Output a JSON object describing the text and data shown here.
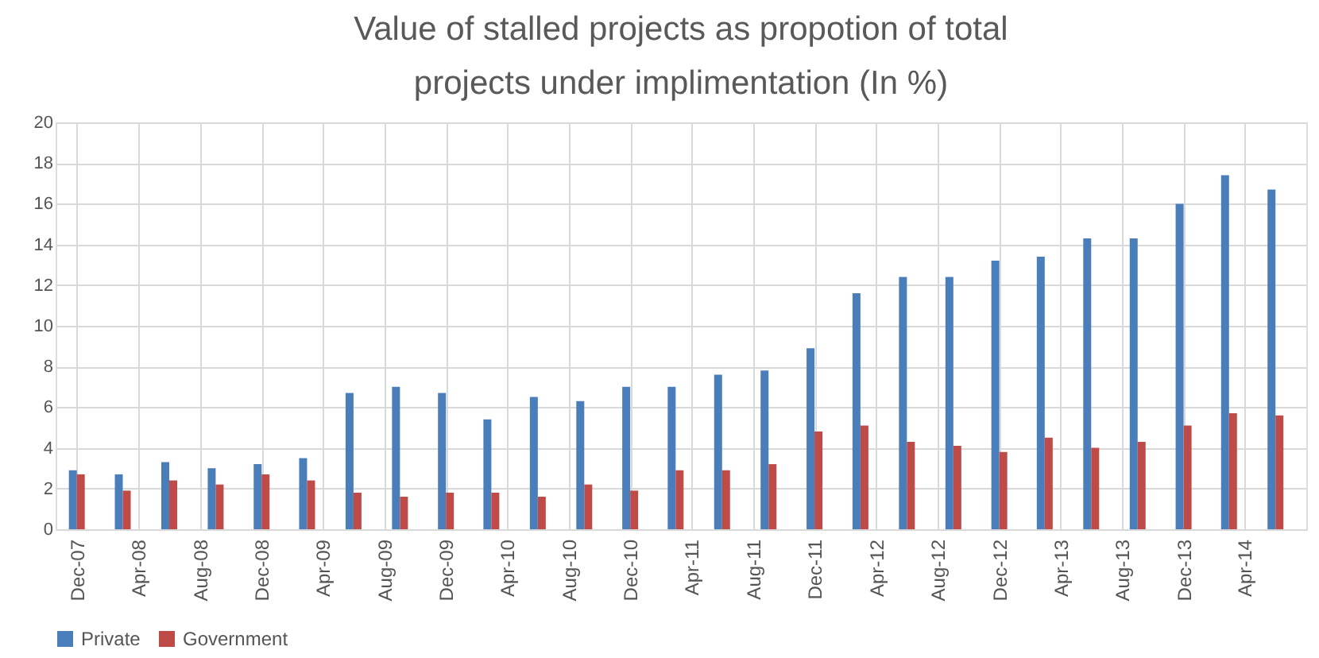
{
  "chart_data": {
    "type": "bar",
    "title": [
      "Value of stalled projects as propotion of total",
      "projects under implimentation (In %)"
    ],
    "x": [
      "2007-12",
      "2008-03",
      "2008-06",
      "2008-09",
      "2008-12",
      "2009-03",
      "2009-06",
      "2009-09",
      "2009-12",
      "2010-03",
      "2010-06",
      "2010-09",
      "2010-12",
      "2011-03",
      "2011-06",
      "2011-09",
      "2011-12",
      "2012-03",
      "2012-06",
      "2012-09",
      "2012-12",
      "2013-03",
      "2013-06",
      "2013-09",
      "2013-12",
      "2014-03",
      "2014-06"
    ],
    "series": [
      {
        "name": "Private",
        "color": "#4a7ebb",
        "values": [
          2.9,
          2.7,
          3.3,
          3.0,
          3.2,
          3.5,
          6.7,
          7.0,
          6.7,
          5.4,
          6.5,
          6.3,
          7.0,
          7.0,
          7.6,
          7.8,
          8.9,
          11.6,
          12.4,
          12.4,
          13.2,
          13.4,
          14.3,
          14.3,
          16.0,
          17.4,
          16.7
        ]
      },
      {
        "name": "Government",
        "color": "#be4b48",
        "values": [
          2.7,
          1.9,
          2.4,
          2.2,
          2.7,
          2.4,
          1.8,
          1.6,
          1.8,
          1.8,
          1.6,
          2.2,
          1.9,
          2.9,
          2.9,
          3.2,
          4.8,
          5.1,
          4.3,
          4.1,
          3.8,
          4.5,
          4.0,
          4.3,
          5.1,
          5.7,
          5.6
        ]
      }
    ],
    "xlim": [
      "2007-10-20",
      "2014-08-01"
    ],
    "xticks": [
      {
        "value": "2007-12",
        "label": "Dec-07"
      },
      {
        "value": "2008-04",
        "label": "Apr-08"
      },
      {
        "value": "2008-08",
        "label": "Aug-08"
      },
      {
        "value": "2008-12",
        "label": "Dec-08"
      },
      {
        "value": "2009-04",
        "label": "Apr-09"
      },
      {
        "value": "2009-08",
        "label": "Aug-09"
      },
      {
        "value": "2009-12",
        "label": "Dec-09"
      },
      {
        "value": "2010-04",
        "label": "Apr-10"
      },
      {
        "value": "2010-08",
        "label": "Aug-10"
      },
      {
        "value": "2010-12",
        "label": "Dec-10"
      },
      {
        "value": "2011-04",
        "label": "Apr-11"
      },
      {
        "value": "2011-08",
        "label": "Aug-11"
      },
      {
        "value": "2011-12",
        "label": "Dec-11"
      },
      {
        "value": "2012-04",
        "label": "Apr-12"
      },
      {
        "value": "2012-08",
        "label": "Aug-12"
      },
      {
        "value": "2012-12",
        "label": "Dec-12"
      },
      {
        "value": "2013-04",
        "label": "Apr-13"
      },
      {
        "value": "2013-08",
        "label": "Aug-13"
      },
      {
        "value": "2013-12",
        "label": "Dec-13"
      },
      {
        "value": "2014-04",
        "label": "Apr-14"
      }
    ],
    "ylim": [
      0,
      20
    ],
    "yticks": [
      0,
      2,
      4,
      6,
      8,
      10,
      12,
      14,
      16,
      18,
      20
    ],
    "grid": true,
    "legend": "bottom"
  }
}
